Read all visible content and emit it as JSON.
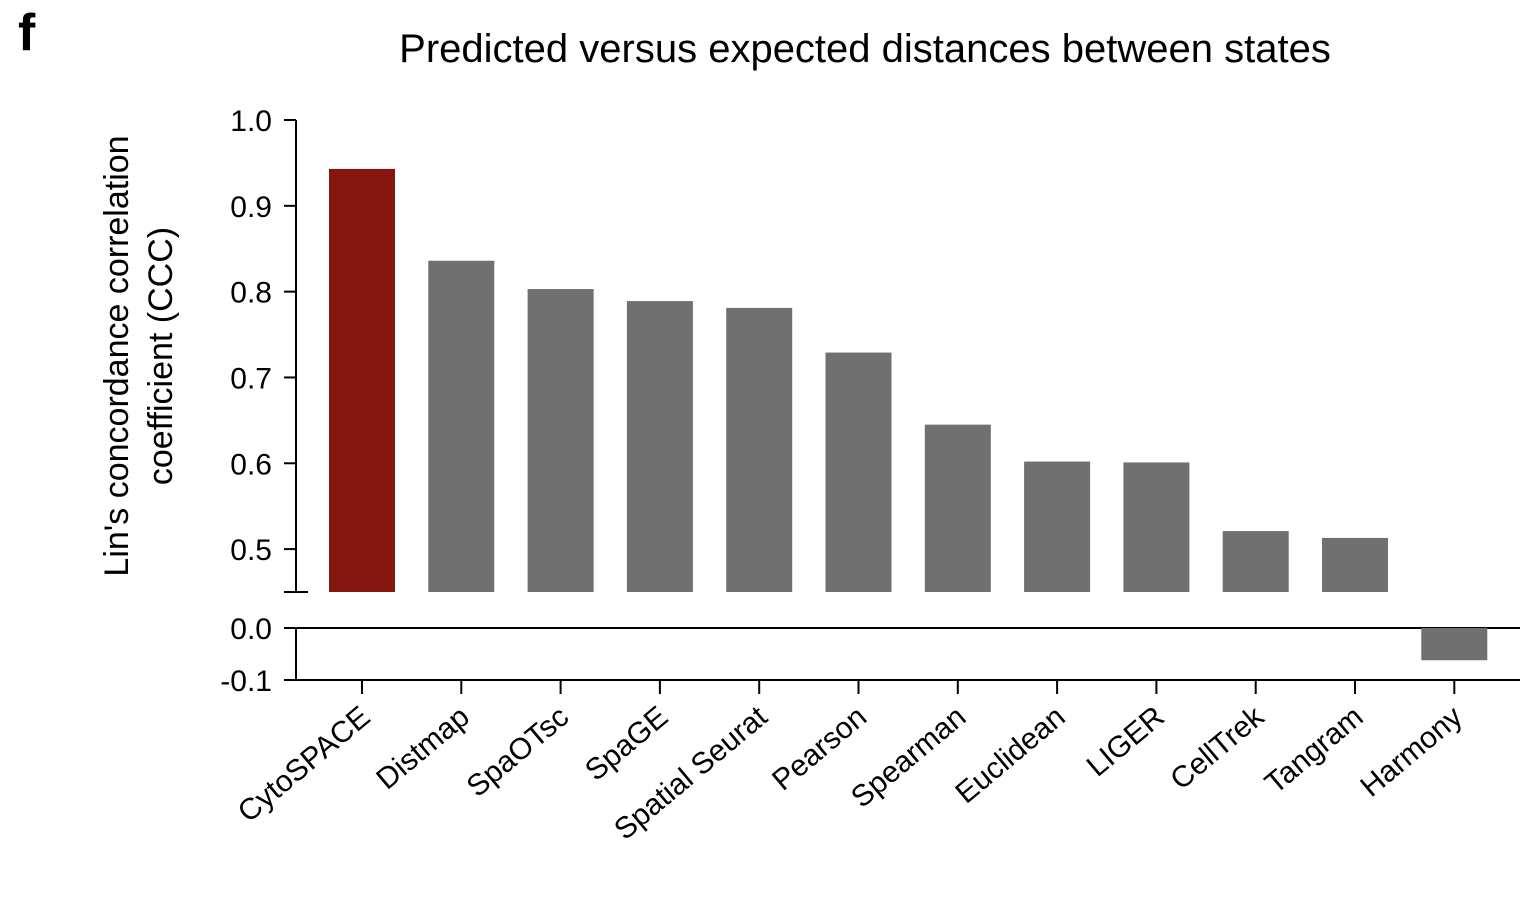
{
  "panel_label": "f",
  "chart_data": {
    "type": "bar",
    "title": "Predicted versus expected distances between states",
    "xlabel": "",
    "ylabel": "Lin's concordance correlation coefficient (CCC)",
    "ylabel_lines": [
      "Lin's concordance correlation",
      "coefficient (CCC)"
    ],
    "categories": [
      "CytoSPACE",
      "Distmap",
      "SpaOTsc",
      "SpaGE",
      "Spatial Seurat",
      "Pearson",
      "Spearman",
      "Euclidean",
      "LIGER",
      "CellTrek",
      "Tangram",
      "Harmony"
    ],
    "values": [
      0.943,
      0.836,
      0.803,
      0.789,
      0.781,
      0.729,
      0.645,
      0.602,
      0.601,
      0.521,
      0.513,
      -0.062
    ],
    "highlight_category": "CytoSPACE",
    "colors": {
      "highlight": "#85160f",
      "default": "#707070",
      "axis": "#000000"
    },
    "axis_break": true,
    "ylim_upper": [
      0.45,
      1.0
    ],
    "ylim_lower": [
      -0.1,
      0.0
    ],
    "yticks_upper": [
      0.5,
      0.6,
      0.7,
      0.8,
      0.9,
      1.0
    ],
    "yticks_upper_labels": [
      "0.5",
      "0.6",
      "0.7",
      "0.8",
      "0.9",
      "1.0"
    ],
    "yticks_lower": [
      -0.1,
      0.0
    ],
    "yticks_lower_labels": [
      "-0.1",
      "0.0"
    ],
    "grid": false,
    "legend": "none"
  }
}
